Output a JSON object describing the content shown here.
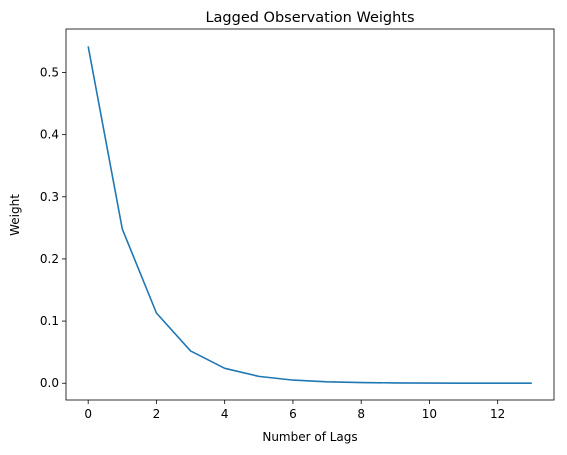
{
  "chart_data": {
    "type": "line",
    "title": "Lagged Observation Weights",
    "xlabel": "Number of Lags",
    "ylabel": "Weight",
    "xlim": [
      -0.65,
      13.65
    ],
    "ylim": [
      -0.027,
      0.57
    ],
    "xticks": [
      0,
      2,
      4,
      6,
      8,
      10,
      12
    ],
    "xtick_labels": [
      "0",
      "2",
      "4",
      "6",
      "8",
      "10",
      "12"
    ],
    "yticks": [
      0.0,
      0.1,
      0.2,
      0.3,
      0.4,
      0.5
    ],
    "ytick_labels": [
      "0.0",
      "0.1",
      "0.2",
      "0.3",
      "0.4",
      "0.5"
    ],
    "grid": false,
    "color": "#1f77b4",
    "series": [
      {
        "x": [
          0,
          1,
          2,
          3,
          4,
          5,
          6,
          7,
          8,
          9,
          10,
          11,
          12,
          13
        ],
        "values": [
          0.542,
          0.248,
          0.113,
          0.052,
          0.024,
          0.011,
          0.005,
          0.0023,
          0.0011,
          0.0005,
          0.0002,
          0.0001,
          5e-05,
          2e-05
        ]
      }
    ]
  }
}
